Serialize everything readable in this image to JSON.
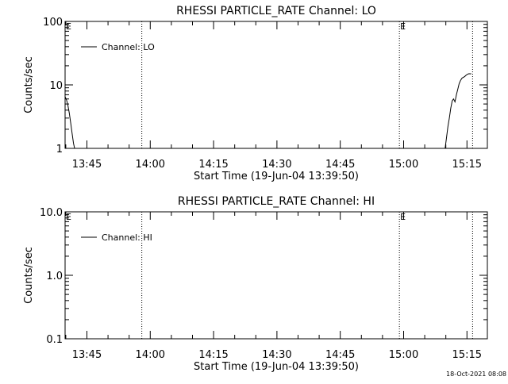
{
  "footer": {
    "timestamp": "18-Oct-2021 08:08"
  },
  "chart_data": [
    {
      "type": "line",
      "title": "RHESSI PARTICLE_RATE Channel: LO",
      "xlabel": "Start Time (19-Jun-04 13:39:50)",
      "ylabel": "Counts/sec",
      "yscale": "log",
      "ylim": [
        1,
        100
      ],
      "yticks": [
        {
          "value": 1,
          "label": "1"
        },
        {
          "value": 10,
          "label": "10"
        },
        {
          "value": 100,
          "label": "100"
        }
      ],
      "xlim": [
        "13:39:50",
        "15:19:50"
      ],
      "xticks": [
        "13:45",
        "14:00",
        "14:15",
        "14:30",
        "14:45",
        "15:00",
        "15:15"
      ],
      "grid": false,
      "legend": {
        "position": "top-left",
        "entries": [
          "Channel: LO"
        ]
      },
      "markers": [
        {
          "time": "13:39:50",
          "label": "E"
        },
        {
          "time": "13:58:00",
          "label": ""
        },
        {
          "time": "14:59:00",
          "label": "E"
        },
        {
          "time": "15:16:20",
          "label": ""
        }
      ],
      "series": [
        {
          "name": "Channel: LO",
          "segments": [
            [
              [
                "13:39:50",
                6.5
              ],
              [
                "13:40:10",
                5.8
              ],
              [
                "13:40:30",
                4.8
              ],
              [
                "13:40:50",
                3.6
              ],
              [
                "13:41:10",
                2.5
              ],
              [
                "13:41:30",
                1.7
              ],
              [
                "13:41:50",
                1.2
              ],
              [
                "13:42:05",
                1.0
              ]
            ],
            [
              [
                "15:09:50",
                1.0
              ],
              [
                "15:10:10",
                1.5
              ],
              [
                "15:10:30",
                2.2
              ],
              [
                "15:10:50",
                3.0
              ],
              [
                "15:11:10",
                4.3
              ],
              [
                "15:11:30",
                5.6
              ],
              [
                "15:11:50",
                6.0
              ],
              [
                "15:12:10",
                5.4
              ],
              [
                "15:12:30",
                7.0
              ],
              [
                "15:12:50",
                8.6
              ],
              [
                "15:13:10",
                10.5
              ],
              [
                "15:13:30",
                11.8
              ],
              [
                "15:13:50",
                12.8
              ],
              [
                "15:14:10",
                13.2
              ],
              [
                "15:14:30",
                13.6
              ],
              [
                "15:14:50",
                14.3
              ],
              [
                "15:15:10",
                14.8
              ],
              [
                "15:15:30",
                15.0
              ],
              [
                "15:15:50",
                14.9
              ],
              [
                "15:16:00",
                15.1
              ]
            ]
          ]
        }
      ]
    },
    {
      "type": "line",
      "title": "RHESSI PARTICLE_RATE Channel: HI",
      "xlabel": "Start Time (19-Jun-04 13:39:50)",
      "ylabel": "Counts/sec",
      "yscale": "log",
      "ylim": [
        0.1,
        10
      ],
      "yticks": [
        {
          "value": 0.1,
          "label": "0.1"
        },
        {
          "value": 1,
          "label": "1.0"
        },
        {
          "value": 10,
          "label": "10.0"
        }
      ],
      "xlim": [
        "13:39:50",
        "15:19:50"
      ],
      "xticks": [
        "13:45",
        "14:00",
        "14:15",
        "14:30",
        "14:45",
        "15:00",
        "15:15"
      ],
      "grid": false,
      "legend": {
        "position": "top-left",
        "entries": [
          "Channel: HI"
        ]
      },
      "markers": [
        {
          "time": "13:39:50",
          "label": "E"
        },
        {
          "time": "13:58:00",
          "label": ""
        },
        {
          "time": "14:59:00",
          "label": "E"
        },
        {
          "time": "15:16:20",
          "label": ""
        }
      ],
      "series": [
        {
          "name": "Channel: HI",
          "segments": []
        }
      ]
    }
  ]
}
